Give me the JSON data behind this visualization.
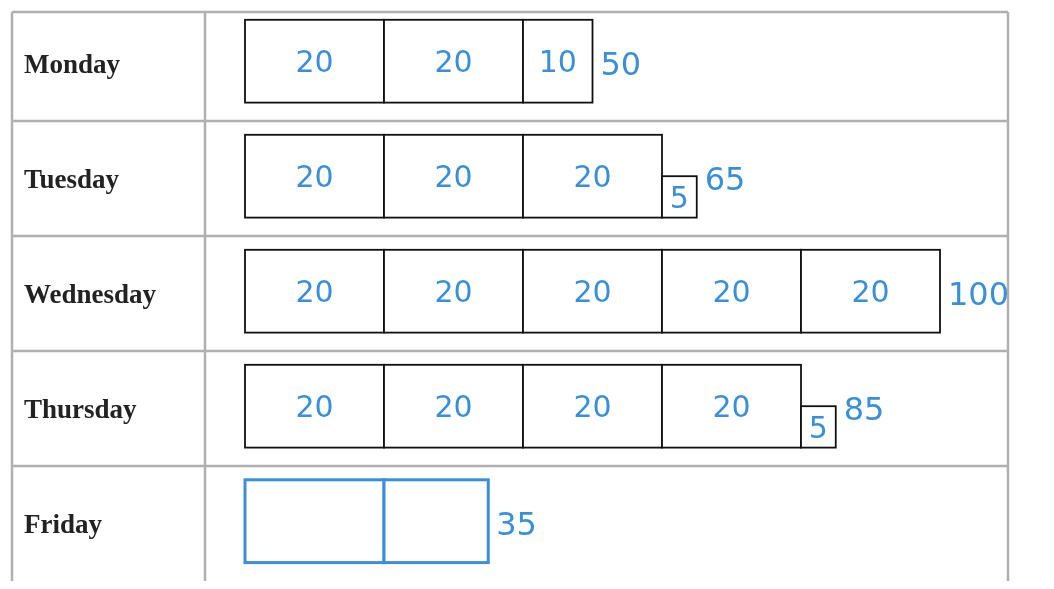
{
  "chart_data": {
    "type": "bar",
    "orientation": "horizontal",
    "stacked": true,
    "categories": [
      "Monday",
      "Tuesday",
      "Wednesday",
      "Thursday",
      "Friday"
    ],
    "series": [
      {
        "color": "#ffffff",
        "values": [
          20,
          20,
          20,
          20,
          20
        ],
        "value_labels": [
          "20",
          "20",
          "20",
          "20",
          null
        ]
      },
      {
        "color": "#ffffff",
        "values": [
          20,
          20,
          20,
          20,
          15
        ],
        "value_labels": [
          "20",
          "20",
          "20",
          "20",
          null
        ]
      },
      {
        "color": "#ffffff",
        "values": [
          10,
          20,
          20,
          20,
          null
        ],
        "value_labels": [
          "10",
          "20",
          "20",
          "20",
          null
        ]
      },
      {
        "color": "#ffffff",
        "values": [
          null,
          5,
          20,
          20,
          null
        ],
        "value_labels": [
          null,
          "5",
          "20",
          "20",
          null
        ]
      },
      {
        "color": "#ffffff",
        "values": [
          null,
          null,
          20,
          5,
          null
        ],
        "value_labels": [
          null,
          null,
          "20",
          "5",
          null
        ]
      }
    ],
    "totals": [
      "50",
      "65",
      "100",
      "85",
      "35"
    ]
  }
}
